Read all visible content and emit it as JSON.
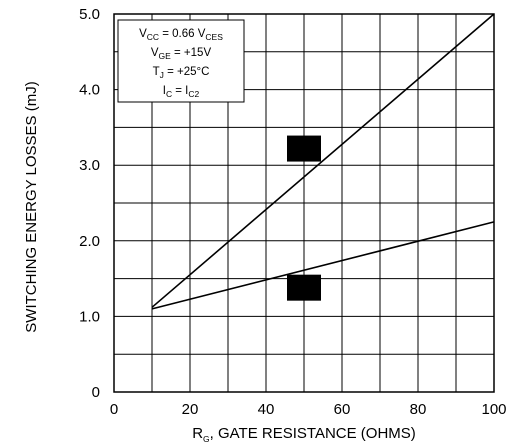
{
  "chart_data": {
    "type": "line",
    "xlabel": {
      "prefix": "R",
      "sub": "G",
      "rest": ", GATE RESISTANCE (OHMS)"
    },
    "ylabel": "SWITCHING ENERGY LOSSES (mJ)",
    "xlim": [
      0,
      100
    ],
    "ylim": [
      0,
      5
    ],
    "x_ticks": [
      {
        "value": 0,
        "label": "0"
      },
      {
        "value": 20,
        "label": "20"
      },
      {
        "value": 40,
        "label": "40"
      },
      {
        "value": 60,
        "label": "60"
      },
      {
        "value": 80,
        "label": "80"
      },
      {
        "value": 100,
        "label": "100"
      }
    ],
    "y_ticks": [
      {
        "value": 0,
        "label": "0"
      },
      {
        "value": 1,
        "label": "1.0"
      },
      {
        "value": 2,
        "label": "2.0"
      },
      {
        "value": 3,
        "label": "3.0"
      },
      {
        "value": 4,
        "label": "4.0"
      },
      {
        "value": 5,
        "label": "5.0"
      }
    ],
    "grid": {
      "x_step": 10,
      "y_step": 0.5,
      "visible": true
    },
    "series": [
      {
        "x": [
          10,
          100
        ],
        "y": [
          1.12,
          5.0
        ]
      },
      {
        "x": [
          10,
          100
        ],
        "y": [
          1.1,
          2.25
        ]
      }
    ],
    "series_markers": [
      {
        "x": 50,
        "y": 3.22
      },
      {
        "x": 50,
        "y": 1.38
      }
    ],
    "conditions": [
      {
        "pre": "V",
        "sub": "CC",
        "mid": " = 0.66 V",
        "sub2": "CES",
        "post": ""
      },
      {
        "pre": "V",
        "sub": "GE",
        "mid": " = +15V",
        "sub2": "",
        "post": ""
      },
      {
        "pre": "T",
        "sub": "J",
        "mid": " = +25°C",
        "sub2": "",
        "post": ""
      },
      {
        "pre": "I",
        "sub": "C",
        "mid": " = I",
        "sub2": "C2",
        "post": ""
      }
    ]
  }
}
